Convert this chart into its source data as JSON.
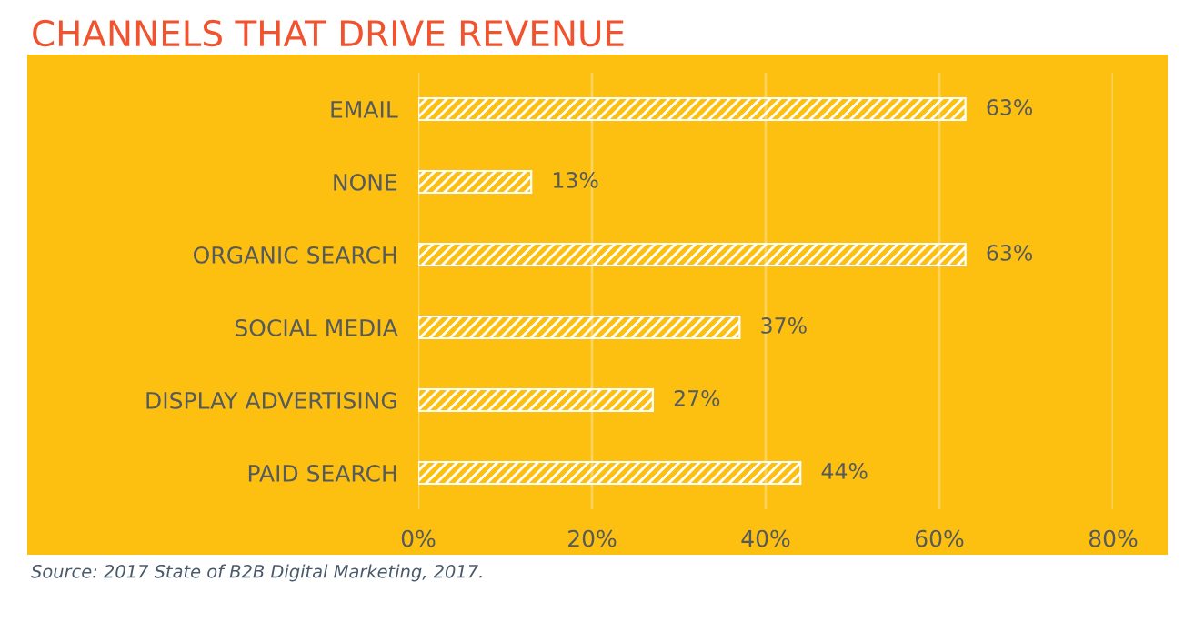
{
  "chart_data": {
    "type": "bar",
    "orientation": "horizontal",
    "title": "CHANNELS THAT DRIVE REVENUE",
    "categories": [
      "EMAIL",
      "NONE",
      "ORGANIC SEARCH",
      "SOCIAL MEDIA",
      "DISPLAY ADVERTISING",
      "PAID SEARCH"
    ],
    "values": [
      63,
      13,
      63,
      37,
      27,
      44
    ],
    "value_labels": [
      "63%",
      "13%",
      "63%",
      "37%",
      "27%",
      "44%"
    ],
    "color": "#ffffff",
    "xlim": [
      0,
      80
    ],
    "xticks": [
      {
        "value": 0,
        "label": "0%"
      },
      {
        "value": 20,
        "label": "20%"
      },
      {
        "value": 40,
        "label": "40%"
      },
      {
        "value": 60,
        "label": "60%"
      },
      {
        "value": 80,
        "label": "80%"
      }
    ],
    "grid": "x",
    "annotations": [
      "Source: 2017 State of B2B Digital Marketing, 2017."
    ]
  }
}
